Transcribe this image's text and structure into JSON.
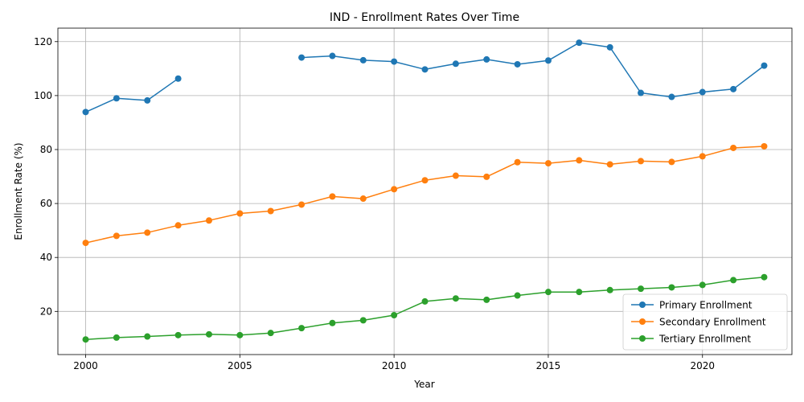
{
  "chart_data": {
    "type": "line",
    "title": "IND - Enrollment Rates Over Time",
    "xlabel": "Year",
    "ylabel": "Enrollment Rate (%)",
    "xlim": [
      1999.1,
      2022.9
    ],
    "ylim": [
      4,
      125
    ],
    "xticks": [
      2000,
      2005,
      2010,
      2015,
      2020
    ],
    "yticks": [
      20,
      40,
      60,
      80,
      100,
      120
    ],
    "grid": true,
    "legend_position": "lower right",
    "x": [
      2000,
      2001,
      2002,
      2003,
      2004,
      2005,
      2006,
      2007,
      2008,
      2009,
      2010,
      2011,
      2012,
      2013,
      2014,
      2015,
      2016,
      2017,
      2018,
      2019,
      2020,
      2021,
      2022
    ],
    "series": [
      {
        "name": "Primary Enrollment",
        "color": "#1f77b4",
        "values": [
          93.9,
          99.0,
          98.2,
          106.3,
          null,
          null,
          null,
          114.1,
          114.7,
          113.1,
          112.6,
          109.7,
          111.8,
          113.4,
          111.6,
          113.0,
          119.6,
          117.9,
          101.0,
          99.5,
          101.3,
          102.4,
          111.1
        ]
      },
      {
        "name": "Secondary Enrollment",
        "color": "#ff7f0e",
        "values": [
          45.4,
          48.0,
          49.2,
          51.9,
          53.7,
          56.3,
          57.2,
          59.6,
          62.6,
          61.8,
          65.3,
          68.6,
          70.3,
          69.9,
          75.3,
          74.9,
          76.0,
          74.5,
          75.7,
          75.4,
          77.5,
          80.6,
          81.2
        ]
      },
      {
        "name": "Tertiary Enrollment",
        "color": "#2ca02c",
        "values": [
          9.6,
          10.3,
          10.7,
          11.2,
          11.5,
          11.2,
          12.0,
          13.8,
          15.7,
          16.7,
          18.6,
          23.7,
          24.8,
          24.3,
          25.9,
          27.2,
          27.2,
          27.9,
          28.4,
          28.9,
          29.8,
          31.6,
          32.7
        ]
      }
    ]
  }
}
